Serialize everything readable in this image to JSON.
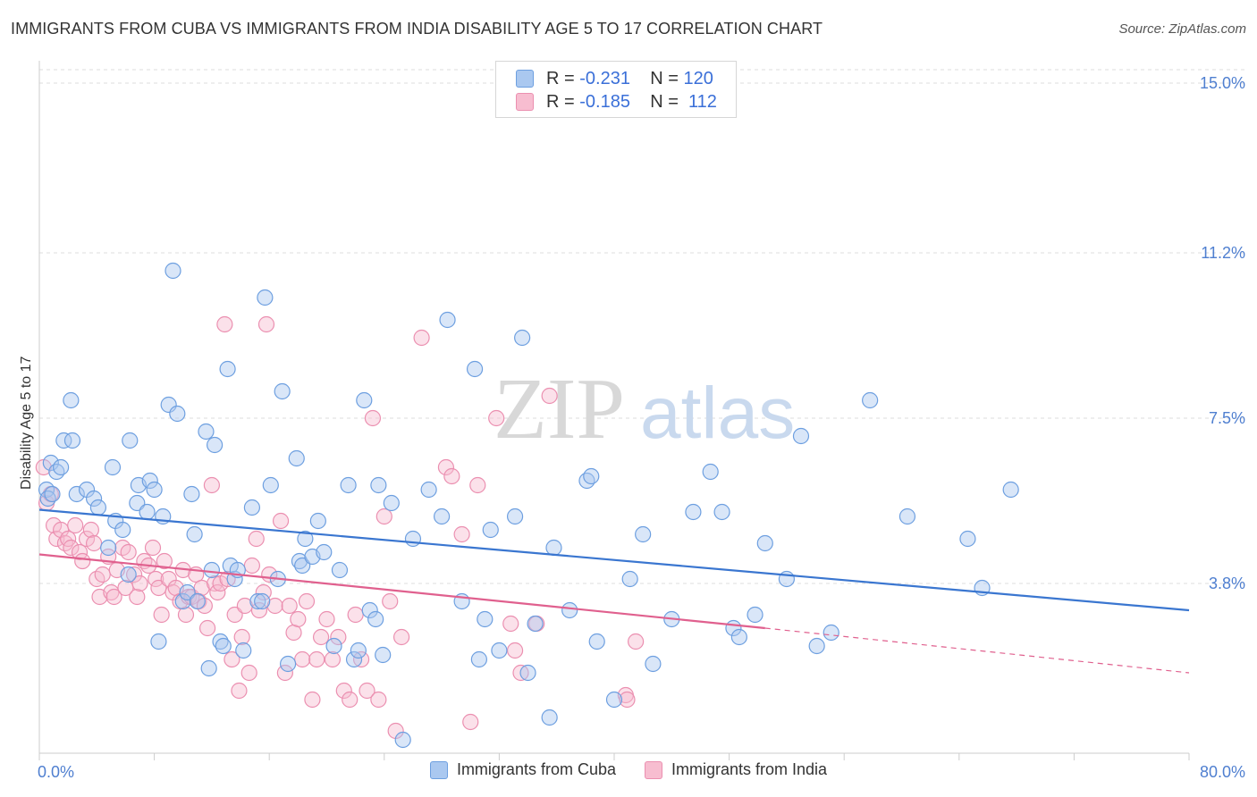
{
  "title": "IMMIGRANTS FROM CUBA VS IMMIGRANTS FROM INDIA DISABILITY AGE 5 TO 17 CORRELATION CHART",
  "source": "Source: ZipAtlas.com",
  "watermark": {
    "zip": "ZIP",
    "atlas": "atlas"
  },
  "colors": {
    "cuba_fill": "#aac8f0",
    "cuba_stroke": "#6d9fe0",
    "cuba_line": "#3a76d0",
    "india_fill": "#f7bdd0",
    "india_stroke": "#eb8fb0",
    "india_line": "#e0608e",
    "grid": "#dddddd",
    "tick_text": "#4f7fd0"
  },
  "legend": {
    "r_label": "R = ",
    "n_label": "N = ",
    "cuba": {
      "r": "-0.231",
      "n": "120"
    },
    "india": {
      "r": "-0.185",
      "n": "112"
    }
  },
  "chart_data": {
    "type": "scatter",
    "xlabel": "",
    "ylabel": "Disability Age 5 to 17",
    "xlim": [
      0,
      80
    ],
    "ylim": [
      0,
      15.5
    ],
    "x_tick_labels": [
      "0.0%",
      "80.0%"
    ],
    "y_ticks": [
      3.8,
      7.5,
      11.2,
      15.0
    ],
    "y_tick_labels": [
      "3.8%",
      "7.5%",
      "11.2%",
      "15.0%"
    ],
    "grid": true,
    "series": [
      {
        "name": "Immigrants from Cuba",
        "trend": {
          "x0": 0,
          "y0": 5.45,
          "x1": 80,
          "y1": 3.2
        },
        "points": [
          [
            0.5,
            5.9
          ],
          [
            0.8,
            6.5
          ],
          [
            1.2,
            6.3
          ],
          [
            1.5,
            6.4
          ],
          [
            0.6,
            5.7
          ],
          [
            0.9,
            5.8
          ],
          [
            1.7,
            7.0
          ],
          [
            2.3,
            7.0
          ],
          [
            2.2,
            7.9
          ],
          [
            2.6,
            5.8
          ],
          [
            3.3,
            5.9
          ],
          [
            3.8,
            5.7
          ],
          [
            4.1,
            5.5
          ],
          [
            4.8,
            4.6
          ],
          [
            5.1,
            6.4
          ],
          [
            5.3,
            5.2
          ],
          [
            5.8,
            5.0
          ],
          [
            6.2,
            4.0
          ],
          [
            6.3,
            7.0
          ],
          [
            6.8,
            5.6
          ],
          [
            6.9,
            6.0
          ],
          [
            7.5,
            5.4
          ],
          [
            7.7,
            6.1
          ],
          [
            8.0,
            5.9
          ],
          [
            8.3,
            2.5
          ],
          [
            8.6,
            5.3
          ],
          [
            9.0,
            7.8
          ],
          [
            9.3,
            10.8
          ],
          [
            9.6,
            7.6
          ],
          [
            10.0,
            3.4
          ],
          [
            10.3,
            3.6
          ],
          [
            10.6,
            5.8
          ],
          [
            10.8,
            4.9
          ],
          [
            11.0,
            3.4
          ],
          [
            11.6,
            7.2
          ],
          [
            11.8,
            1.9
          ],
          [
            12.0,
            4.1
          ],
          [
            12.2,
            6.9
          ],
          [
            12.6,
            2.5
          ],
          [
            12.8,
            2.4
          ],
          [
            13.1,
            8.6
          ],
          [
            13.3,
            4.2
          ],
          [
            13.6,
            3.9
          ],
          [
            13.8,
            4.1
          ],
          [
            14.2,
            2.3
          ],
          [
            14.8,
            5.5
          ],
          [
            15.2,
            3.4
          ],
          [
            15.5,
            3.4
          ],
          [
            15.7,
            10.2
          ],
          [
            16.1,
            6.0
          ],
          [
            16.6,
            3.9
          ],
          [
            16.9,
            8.1
          ],
          [
            17.3,
            2.0
          ],
          [
            17.9,
            6.6
          ],
          [
            18.1,
            4.3
          ],
          [
            18.3,
            4.2
          ],
          [
            18.5,
            4.8
          ],
          [
            19.0,
            4.4
          ],
          [
            19.4,
            5.2
          ],
          [
            19.8,
            4.5
          ],
          [
            20.5,
            2.4
          ],
          [
            20.9,
            4.1
          ],
          [
            21.5,
            6.0
          ],
          [
            21.9,
            2.1
          ],
          [
            22.2,
            2.3
          ],
          [
            22.6,
            7.9
          ],
          [
            23.0,
            3.2
          ],
          [
            23.4,
            3.0
          ],
          [
            23.6,
            6.0
          ],
          [
            23.9,
            2.2
          ],
          [
            24.5,
            5.6
          ],
          [
            25.3,
            0.3
          ],
          [
            26.0,
            4.8
          ],
          [
            27.1,
            5.9
          ],
          [
            28.0,
            5.3
          ],
          [
            28.4,
            9.7
          ],
          [
            29.4,
            3.4
          ],
          [
            30.3,
            8.6
          ],
          [
            30.6,
            2.1
          ],
          [
            31.0,
            3.0
          ],
          [
            31.4,
            5.0
          ],
          [
            32.0,
            2.3
          ],
          [
            33.1,
            5.3
          ],
          [
            33.6,
            9.3
          ],
          [
            34.0,
            1.8
          ],
          [
            34.5,
            2.9
          ],
          [
            35.5,
            0.8
          ],
          [
            35.8,
            4.6
          ],
          [
            36.9,
            3.2
          ],
          [
            38.1,
            6.1
          ],
          [
            38.4,
            6.2
          ],
          [
            38.8,
            2.5
          ],
          [
            40.0,
            1.2
          ],
          [
            41.1,
            3.9
          ],
          [
            42.0,
            4.9
          ],
          [
            42.7,
            2.0
          ],
          [
            44.0,
            3.0
          ],
          [
            45.5,
            5.4
          ],
          [
            46.7,
            6.3
          ],
          [
            47.5,
            5.4
          ],
          [
            48.3,
            2.8
          ],
          [
            48.7,
            2.6
          ],
          [
            49.8,
            3.1
          ],
          [
            50.5,
            4.7
          ],
          [
            52.0,
            3.9
          ],
          [
            53.0,
            7.1
          ],
          [
            54.1,
            2.4
          ],
          [
            55.1,
            2.7
          ],
          [
            57.8,
            7.9
          ],
          [
            60.4,
            5.3
          ],
          [
            64.6,
            4.8
          ],
          [
            65.6,
            3.7
          ],
          [
            67.6,
            5.9
          ]
        ]
      },
      {
        "name": "Immigrants from India",
        "trend": {
          "x0": 0,
          "y0": 4.45,
          "x1": 50.5,
          "y1": 2.8,
          "dash_x1": 80,
          "dash_y1": 1.8
        },
        "points": [
          [
            0.3,
            6.4
          ],
          [
            0.5,
            5.6
          ],
          [
            0.8,
            5.8
          ],
          [
            1.0,
            5.1
          ],
          [
            1.2,
            4.8
          ],
          [
            1.5,
            5.0
          ],
          [
            1.8,
            4.7
          ],
          [
            2.0,
            4.8
          ],
          [
            2.2,
            4.6
          ],
          [
            2.5,
            5.1
          ],
          [
            2.8,
            4.5
          ],
          [
            3.0,
            4.3
          ],
          [
            3.3,
            4.8
          ],
          [
            3.6,
            5.0
          ],
          [
            3.8,
            4.7
          ],
          [
            4.0,
            3.9
          ],
          [
            4.2,
            3.5
          ],
          [
            4.4,
            4.0
          ],
          [
            4.8,
            4.4
          ],
          [
            5.0,
            3.6
          ],
          [
            5.2,
            3.5
          ],
          [
            5.4,
            4.1
          ],
          [
            5.8,
            4.6
          ],
          [
            6.0,
            3.7
          ],
          [
            6.2,
            4.5
          ],
          [
            6.6,
            4.0
          ],
          [
            6.8,
            3.5
          ],
          [
            7.0,
            3.8
          ],
          [
            7.3,
            4.3
          ],
          [
            7.6,
            4.2
          ],
          [
            7.9,
            4.6
          ],
          [
            8.1,
            3.9
          ],
          [
            8.3,
            3.7
          ],
          [
            8.5,
            3.1
          ],
          [
            8.7,
            4.3
          ],
          [
            9.0,
            3.9
          ],
          [
            9.3,
            3.6
          ],
          [
            9.5,
            3.7
          ],
          [
            9.8,
            3.4
          ],
          [
            10.0,
            4.1
          ],
          [
            10.2,
            3.1
          ],
          [
            10.4,
            3.5
          ],
          [
            10.6,
            3.5
          ],
          [
            10.9,
            4.0
          ],
          [
            11.1,
            3.4
          ],
          [
            11.3,
            3.7
          ],
          [
            11.5,
            3.3
          ],
          [
            11.7,
            2.8
          ],
          [
            12.0,
            6.0
          ],
          [
            12.2,
            3.8
          ],
          [
            12.4,
            3.6
          ],
          [
            12.6,
            3.8
          ],
          [
            12.9,
            9.6
          ],
          [
            13.1,
            3.9
          ],
          [
            13.4,
            2.1
          ],
          [
            13.6,
            3.1
          ],
          [
            13.9,
            1.4
          ],
          [
            14.1,
            2.6
          ],
          [
            14.3,
            3.3
          ],
          [
            14.6,
            1.8
          ],
          [
            14.8,
            4.2
          ],
          [
            15.1,
            4.8
          ],
          [
            15.3,
            3.2
          ],
          [
            15.6,
            3.6
          ],
          [
            15.8,
            9.6
          ],
          [
            16.0,
            4.0
          ],
          [
            16.4,
            3.3
          ],
          [
            16.8,
            5.2
          ],
          [
            17.1,
            1.8
          ],
          [
            17.4,
            3.3
          ],
          [
            17.7,
            2.7
          ],
          [
            18.0,
            3.0
          ],
          [
            18.3,
            2.1
          ],
          [
            18.6,
            3.4
          ],
          [
            19.0,
            1.2
          ],
          [
            19.3,
            2.1
          ],
          [
            19.6,
            2.6
          ],
          [
            20.0,
            3.0
          ],
          [
            20.4,
            2.1
          ],
          [
            20.8,
            2.6
          ],
          [
            21.2,
            1.4
          ],
          [
            21.6,
            1.2
          ],
          [
            22.0,
            3.1
          ],
          [
            22.4,
            2.1
          ],
          [
            22.8,
            1.4
          ],
          [
            23.2,
            7.5
          ],
          [
            23.6,
            1.2
          ],
          [
            24.0,
            5.3
          ],
          [
            24.4,
            3.4
          ],
          [
            24.8,
            0.5
          ],
          [
            25.2,
            2.6
          ],
          [
            26.6,
            9.3
          ],
          [
            28.3,
            6.4
          ],
          [
            28.7,
            6.2
          ],
          [
            29.4,
            4.9
          ],
          [
            30.0,
            0.7
          ],
          [
            30.5,
            6.0
          ],
          [
            31.8,
            7.5
          ],
          [
            32.8,
            2.9
          ],
          [
            33.1,
            2.3
          ],
          [
            33.5,
            1.8
          ],
          [
            34.6,
            2.9
          ],
          [
            35.5,
            8.0
          ],
          [
            40.8,
            1.3
          ],
          [
            40.9,
            1.2
          ],
          [
            41.5,
            2.5
          ]
        ]
      }
    ]
  },
  "bottom_legend": [
    "Immigrants from Cuba",
    "Immigrants from India"
  ]
}
